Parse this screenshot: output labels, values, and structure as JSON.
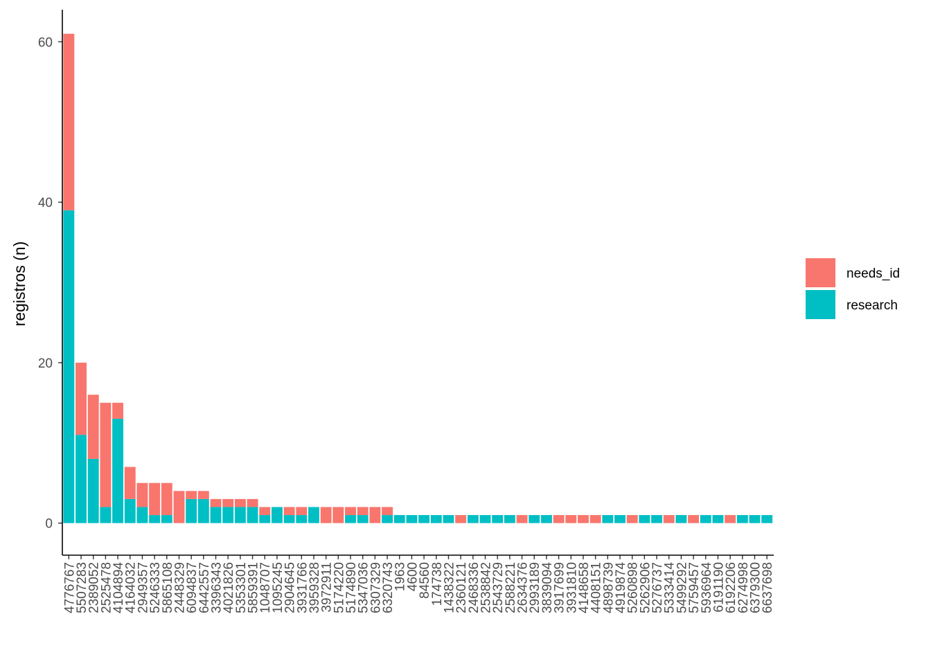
{
  "chart_data": {
    "type": "bar",
    "stacked": true,
    "title": "",
    "xlabel": "",
    "ylabel": "registros (n)",
    "ylim": [
      -4.0,
      64.0
    ],
    "yticks": [
      0,
      20,
      40,
      60
    ],
    "grid": false,
    "legend_position": "right",
    "categories": [
      "4776767",
      "5507283",
      "2389052",
      "2525478",
      "4104894",
      "4164032",
      "2949357",
      "5246333",
      "5865108",
      "2448329",
      "6094837",
      "6442557",
      "3396343",
      "4021826",
      "5353301",
      "5859391",
      "1048707",
      "1095245",
      "2904645",
      "3931766",
      "3959328",
      "3972911",
      "5174220",
      "5174890",
      "5347036",
      "6307329",
      "6320743",
      "1963",
      "4600",
      "84560",
      "174738",
      "1438322",
      "2360121",
      "2468336",
      "2538842",
      "2543729",
      "2588221",
      "2634376",
      "2993189",
      "3839094",
      "3917699",
      "3931810",
      "4148658",
      "4408151",
      "4898739",
      "4919874",
      "5260898",
      "5262906",
      "5276737",
      "5333414",
      "5499292",
      "5759457",
      "5936964",
      "6191190",
      "6192206",
      "6274998",
      "6379300",
      "6637698"
    ],
    "series": [
      {
        "name": "research",
        "color": "#00BFC4",
        "values": [
          39,
          11,
          8,
          2,
          13,
          3,
          2,
          1,
          1,
          0,
          3,
          3,
          2,
          2,
          2,
          2,
          1,
          2,
          1,
          1,
          2,
          0,
          0,
          1,
          1,
          0,
          1,
          1,
          1,
          1,
          1,
          1,
          0,
          1,
          1,
          1,
          1,
          0,
          1,
          1,
          0,
          0,
          0,
          0,
          1,
          1,
          0,
          1,
          1,
          0,
          1,
          0,
          1,
          1,
          0,
          1,
          1,
          1
        ]
      },
      {
        "name": "needs_id",
        "color": "#F8766D",
        "values": [
          22,
          9,
          8,
          13,
          2,
          4,
          3,
          4,
          4,
          4,
          1,
          1,
          1,
          1,
          1,
          1,
          1,
          0,
          1,
          1,
          0,
          2,
          2,
          1,
          1,
          2,
          1,
          0,
          0,
          0,
          0,
          0,
          1,
          0,
          0,
          0,
          0,
          1,
          0,
          0,
          1,
          1,
          1,
          1,
          0,
          0,
          1,
          0,
          0,
          1,
          0,
          1,
          0,
          0,
          1,
          0,
          0,
          0
        ]
      }
    ],
    "legend": [
      {
        "label": "needs_id",
        "color": "#F8766D"
      },
      {
        "label": "research",
        "color": "#00BFC4"
      }
    ]
  }
}
